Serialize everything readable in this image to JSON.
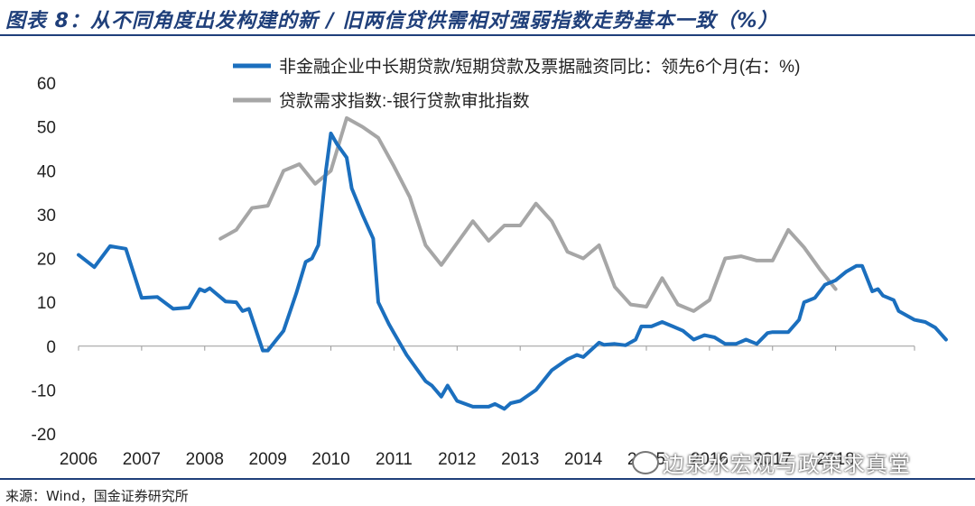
{
  "title": "图表 8：从不同角度出发构建的新 / 旧两信贷供需相对强弱指数走势基本一致（%）",
  "source": "来源：Wind，国金证券研究所",
  "watermark": "边泉水宏观与政策求真堂",
  "colors": {
    "series1": "#1b6fbe",
    "series2": "#a6a6a6",
    "title": "#1f3f7a"
  },
  "chart_data": {
    "type": "line",
    "title": "",
    "xlabel": "",
    "ylabel": "",
    "ylim": [
      -20,
      60
    ],
    "y_ticks": [
      60,
      50,
      40,
      30,
      20,
      10,
      0,
      -10,
      -20
    ],
    "xlim": [
      2006,
      2019.25
    ],
    "x_ticks": [
      "2006",
      "2007",
      "2008",
      "2009",
      "2010",
      "2011",
      "2012",
      "2013",
      "2014",
      "2015",
      "2016",
      "2017",
      "2018"
    ],
    "legend_position": "top",
    "grid": false,
    "series": [
      {
        "name": "非金融企业中长期贷款/短期贷款及票据融资同比：领先6个月(右：%)",
        "color": "#1b6fbe",
        "points": [
          [
            2006.0,
            20.8
          ],
          [
            2006.25,
            18.0
          ],
          [
            2006.5,
            22.8
          ],
          [
            2006.75,
            22.2
          ],
          [
            2007.0,
            11.0
          ],
          [
            2007.25,
            11.2
          ],
          [
            2007.5,
            8.5
          ],
          [
            2007.75,
            8.8
          ],
          [
            2007.92,
            13.0
          ],
          [
            2008.0,
            12.5
          ],
          [
            2008.08,
            13.2
          ],
          [
            2008.33,
            10.2
          ],
          [
            2008.5,
            10.0
          ],
          [
            2008.6,
            8.0
          ],
          [
            2008.7,
            8.5
          ],
          [
            2008.92,
            -1.0
          ],
          [
            2009.0,
            -1.0
          ],
          [
            2009.25,
            3.5
          ],
          [
            2009.45,
            12.0
          ],
          [
            2009.6,
            19.2
          ],
          [
            2009.7,
            20.0
          ],
          [
            2009.8,
            23.0
          ],
          [
            2009.92,
            40.0
          ],
          [
            2010.0,
            48.5
          ],
          [
            2010.1,
            46.0
          ],
          [
            2010.25,
            43.0
          ],
          [
            2010.33,
            36.0
          ],
          [
            2010.5,
            30.0
          ],
          [
            2010.67,
            24.5
          ],
          [
            2010.75,
            10.0
          ],
          [
            2010.92,
            5.0
          ],
          [
            2011.0,
            3.0
          ],
          [
            2011.2,
            -2.0
          ],
          [
            2011.4,
            -6.0
          ],
          [
            2011.5,
            -8.0
          ],
          [
            2011.6,
            -9.0
          ],
          [
            2011.75,
            -11.5
          ],
          [
            2011.85,
            -9.0
          ],
          [
            2012.0,
            -12.5
          ],
          [
            2012.25,
            -13.8
          ],
          [
            2012.5,
            -13.8
          ],
          [
            2012.6,
            -13.2
          ],
          [
            2012.75,
            -14.3
          ],
          [
            2012.85,
            -13.0
          ],
          [
            2013.0,
            -12.5
          ],
          [
            2013.25,
            -10.0
          ],
          [
            2013.5,
            -5.5
          ],
          [
            2013.75,
            -3.0
          ],
          [
            2013.9,
            -2.0
          ],
          [
            2014.0,
            -2.5
          ],
          [
            2014.25,
            0.8
          ],
          [
            2014.33,
            0.3
          ],
          [
            2014.5,
            0.5
          ],
          [
            2014.67,
            0.2
          ],
          [
            2014.83,
            1.5
          ],
          [
            2014.92,
            4.5
          ],
          [
            2015.08,
            4.5
          ],
          [
            2015.25,
            5.5
          ],
          [
            2015.42,
            4.5
          ],
          [
            2015.58,
            3.5
          ],
          [
            2015.75,
            1.5
          ],
          [
            2015.92,
            2.5
          ],
          [
            2016.08,
            2.0
          ],
          [
            2016.25,
            0.5
          ],
          [
            2016.42,
            0.5
          ],
          [
            2016.58,
            1.5
          ],
          [
            2016.75,
            0.5
          ],
          [
            2016.92,
            3.0
          ],
          [
            2017.0,
            3.2
          ],
          [
            2017.25,
            3.2
          ],
          [
            2017.42,
            6.0
          ],
          [
            2017.5,
            10.0
          ],
          [
            2017.67,
            11.0
          ],
          [
            2017.83,
            14.0
          ],
          [
            2018.0,
            15.0
          ],
          [
            2018.17,
            17.0
          ],
          [
            2018.33,
            18.3
          ],
          [
            2018.42,
            18.3
          ],
          [
            2018.58,
            12.5
          ],
          [
            2018.67,
            13.0
          ],
          [
            2018.75,
            11.5
          ],
          [
            2018.92,
            10.5
          ],
          [
            2019.0,
            8.0
          ],
          [
            2019.25,
            6.0
          ],
          [
            2019.42,
            5.5
          ],
          [
            2019.58,
            4.2
          ],
          [
            2019.75,
            1.5
          ]
        ]
      },
      {
        "name": "贷款需求指数:-银行贷款审批指数",
        "color": "#a6a6a6",
        "points": [
          [
            2008.25,
            24.5
          ],
          [
            2008.5,
            26.5
          ],
          [
            2008.75,
            31.5
          ],
          [
            2009.0,
            32.0
          ],
          [
            2009.25,
            40.0
          ],
          [
            2009.5,
            41.5
          ],
          [
            2009.75,
            37.0
          ],
          [
            2010.0,
            40.0
          ],
          [
            2010.25,
            52.0
          ],
          [
            2010.5,
            50.0
          ],
          [
            2010.75,
            47.5
          ],
          [
            2011.0,
            41.0
          ],
          [
            2011.25,
            34.0
          ],
          [
            2011.5,
            23.0
          ],
          [
            2011.75,
            18.5
          ],
          [
            2012.0,
            23.5
          ],
          [
            2012.25,
            28.5
          ],
          [
            2012.5,
            24.0
          ],
          [
            2012.75,
            27.5
          ],
          [
            2013.0,
            27.5
          ],
          [
            2013.25,
            32.5
          ],
          [
            2013.5,
            28.5
          ],
          [
            2013.75,
            21.5
          ],
          [
            2014.0,
            20.0
          ],
          [
            2014.25,
            23.0
          ],
          [
            2014.5,
            13.5
          ],
          [
            2014.75,
            9.5
          ],
          [
            2015.0,
            9.0
          ],
          [
            2015.25,
            15.5
          ],
          [
            2015.5,
            9.5
          ],
          [
            2015.75,
            8.0
          ],
          [
            2016.0,
            10.5
          ],
          [
            2016.25,
            20.0
          ],
          [
            2016.5,
            20.5
          ],
          [
            2016.75,
            19.5
          ],
          [
            2017.0,
            19.5
          ],
          [
            2017.25,
            26.5
          ],
          [
            2017.5,
            22.5
          ],
          [
            2017.75,
            17.5
          ],
          [
            2018.0,
            13.0
          ]
        ]
      }
    ]
  }
}
